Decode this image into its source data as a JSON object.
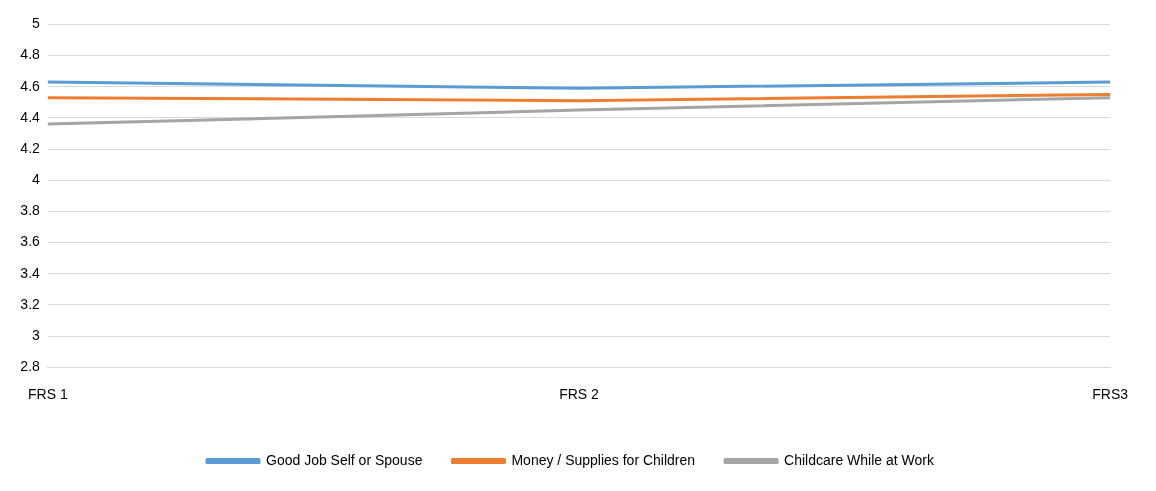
{
  "chart_data": {
    "type": "line",
    "categories": [
      "FRS 1",
      "FRS 2",
      "FRS3"
    ],
    "series": [
      {
        "name": "Good Job Self or Spouse",
        "color": "#5b9bd5",
        "values": [
          4.63,
          4.59,
          4.63
        ]
      },
      {
        "name": "Money / Supplies for Children",
        "color": "#ed7d31",
        "values": [
          4.53,
          4.51,
          4.55
        ]
      },
      {
        "name": "Childcare While at Work",
        "color": "#a5a5a5",
        "values": [
          4.36,
          4.45,
          4.53
        ]
      }
    ],
    "ylim": [
      2.8,
      5
    ],
    "yticks": [
      2.8,
      3,
      3.2,
      3.4,
      3.6,
      3.8,
      4,
      4.2,
      4.4,
      4.6,
      4.8,
      5
    ],
    "grid": "y",
    "legend": "bottom",
    "marker": "none",
    "line_style": "solid"
  }
}
